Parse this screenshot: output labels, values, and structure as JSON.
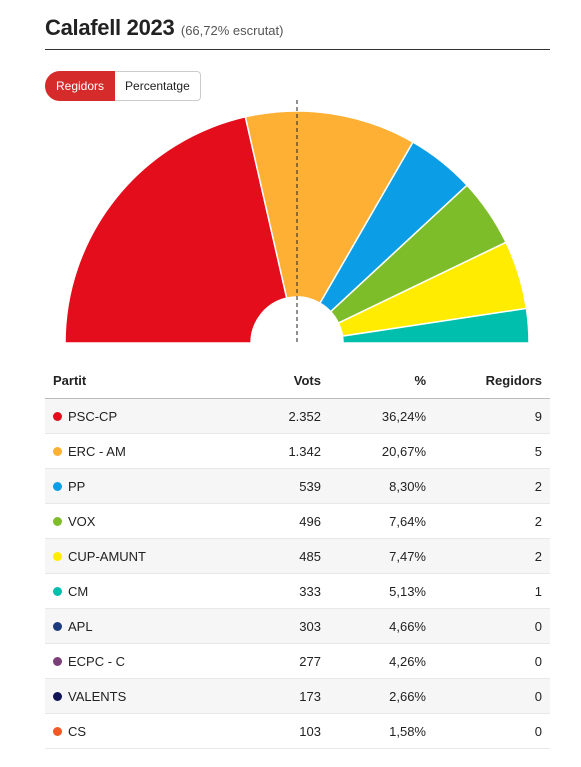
{
  "header": {
    "title": "Calafell 2023",
    "subtitle": "(66,72% escrutat)"
  },
  "toggle": {
    "seats_label": "Regidors",
    "percent_label": "Percentatge",
    "active": "Regidors"
  },
  "table": {
    "headers": {
      "party": "Partit",
      "votes": "Vots",
      "percent": "%",
      "seats": "Regidors"
    }
  },
  "chart_data": {
    "type": "pie",
    "variant": "parliament-hemicycle",
    "total_seats": 21,
    "majority_marker": "vertical dashed line at half (11 seats)",
    "title": "Calafell 2023",
    "rows": [
      {
        "party": "PSC-CP",
        "votes": "2.352",
        "percent": "36,24%",
        "seats": 9,
        "color": "#e30d1b"
      },
      {
        "party": "ERC - AM",
        "votes": "1.342",
        "percent": "20,67%",
        "seats": 5,
        "color": "#fdb034"
      },
      {
        "party": "PP",
        "votes": "539",
        "percent": "8,30%",
        "seats": 2,
        "color": "#0b9ee6"
      },
      {
        "party": "VOX",
        "votes": "496",
        "percent": "7,64%",
        "seats": 2,
        "color": "#7ebd2a"
      },
      {
        "party": "CUP-AMUNT",
        "votes": "485",
        "percent": "7,47%",
        "seats": 2,
        "color": "#ffec00"
      },
      {
        "party": "CM",
        "votes": "333",
        "percent": "5,13%",
        "seats": 1,
        "color": "#00bfad"
      },
      {
        "party": "APL",
        "votes": "303",
        "percent": "4,66%",
        "seats": 0,
        "color": "#1c3b7c"
      },
      {
        "party": "ECPC - C",
        "votes": "277",
        "percent": "4,26%",
        "seats": 0,
        "color": "#7a3f78"
      },
      {
        "party": "VALENTS",
        "votes": "173",
        "percent": "2,66%",
        "seats": 0,
        "color": "#101456"
      },
      {
        "party": "CS",
        "votes": "103",
        "percent": "1,58%",
        "seats": 0,
        "color": "#f15a22"
      }
    ]
  }
}
